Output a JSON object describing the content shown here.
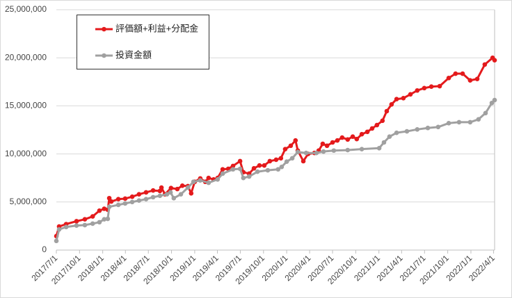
{
  "chart_data": {
    "type": "line",
    "ylim": [
      0,
      25000000
    ],
    "yticks": [
      0,
      {
        "value": 5000000,
        "label": "5,000,000"
      },
      {
        "value": 10000000,
        "label": "10,000,000"
      },
      {
        "value": 15000000,
        "label": "15,000,000"
      },
      {
        "value": 20000000,
        "label": "20,000,000"
      },
      {
        "value": 25000000,
        "label": "25,000,000"
      }
    ],
    "xlim": [
      "2017/7/1",
      "2022/4/5"
    ],
    "xticks": [
      "2017/7/1",
      "2017/10/1",
      "2018/1/1",
      "2018/4/1",
      "2018/7/1",
      "2018/10/1",
      "2019/1/1",
      "2019/4/1",
      "2019/7/1",
      "2019/10/1",
      "2020/1/1",
      "2020/4/1",
      "2020/7/1",
      "2020/10/1",
      "2021/1/1",
      "2021/4/1",
      "2021/7/1",
      "2021/10/1",
      "2022/1/1",
      "2022/4/1"
    ],
    "grid": true,
    "legend": "top-left",
    "series": [
      {
        "name": "評価額+利益+分配金",
        "color": "#e41a1c",
        "x": [
          "2017/7/1",
          "2017/7/12",
          "2017/8/9",
          "2017/9/19",
          "2017/10/22",
          "2017/11/22",
          "2017/12/19",
          "2018/1/7",
          "2018/1/21",
          "2018/1/27",
          "2018/2/4",
          "2018/3/4",
          "2018/3/31",
          "2018/4/28",
          "2018/5/25",
          "2018/6/22",
          "2018/7/20",
          "2018/8/16",
          "2018/8/22",
          "2018/9/5",
          "2018/9/29",
          "2018/10/24",
          "2018/11/13",
          "2018/12/5",
          "2018/12/18",
          "2019/1/1",
          "2019/1/23",
          "2019/2/12",
          "2019/2/25",
          "2019/3/17",
          "2019/4/2",
          "2019/4/22",
          "2019/5/14",
          "2019/6/2",
          "2019/6/30",
          "2019/7/13",
          "2019/8/5",
          "2019/8/24",
          "2019/9/15",
          "2019/10/4",
          "2019/10/26",
          "2019/11/20",
          "2019/12/9",
          "2019/12/26",
          "2020/1/17",
          "2020/2/5",
          "2020/2/14",
          "2020/3/7",
          "2020/3/26",
          "2020/4/20",
          "2020/5/7",
          "2020/5/23",
          "2020/6/9",
          "2020/7/1",
          "2020/7/20",
          "2020/8/8",
          "2020/8/30",
          "2020/9/19",
          "2020/10/5",
          "2020/10/25",
          "2020/11/16",
          "2020/12/5",
          "2020/12/24",
          "2021/1/15",
          "2021/2/1",
          "2021/2/20",
          "2021/3/12",
          "2021/4/8",
          "2021/5/6",
          "2021/6/2",
          "2021/6/30",
          "2021/7/28",
          "2021/8/30",
          "2021/10/5",
          "2021/11/1",
          "2021/11/29",
          "2021/12/29",
          "2022/1/26",
          "2022/2/25",
          "2022/3/28",
          "2022/4/5"
        ],
        "values": [
          1450000,
          2450000,
          2700000,
          3000000,
          3200000,
          3500000,
          4100000,
          4300000,
          4200000,
          5400000,
          5050000,
          5300000,
          5350000,
          5550000,
          5800000,
          6000000,
          6200000,
          6150000,
          6500000,
          5800000,
          6450000,
          6350000,
          6700000,
          6650000,
          5900000,
          7100000,
          7450000,
          7100000,
          7500000,
          7350000,
          7500000,
          8400000,
          8450000,
          8750000,
          9250000,
          8100000,
          7950000,
          8500000,
          8800000,
          8800000,
          9250000,
          9400000,
          9550000,
          10500000,
          10850000,
          11400000,
          10350000,
          9250000,
          10000000,
          10100000,
          10350000,
          11050000,
          10850000,
          11200000,
          11400000,
          11700000,
          11500000,
          11800000,
          11550000,
          12050000,
          12300000,
          12650000,
          13000000,
          13450000,
          14450000,
          15150000,
          15700000,
          15800000,
          16200000,
          16600000,
          16850000,
          17000000,
          17050000,
          17900000,
          18350000,
          18350000,
          17650000,
          17800000,
          19300000,
          20000000,
          19750000
        ]
      },
      {
        "name": "投資金額",
        "color": "#a0a0a0",
        "x": [
          "2017/7/1",
          "2017/7/12",
          "2017/8/9",
          "2017/9/19",
          "2017/10/22",
          "2017/11/22",
          "2017/12/19",
          "2018/1/7",
          "2018/1/21",
          "2018/1/27",
          "2018/3/4",
          "2018/3/31",
          "2018/4/28",
          "2018/5/25",
          "2018/6/22",
          "2018/7/20",
          "2018/8/16",
          "2018/9/13",
          "2018/9/27",
          "2018/10/10",
          "2018/11/7",
          "2018/12/5",
          "2018/12/27",
          "2019/1/23",
          "2019/2/25",
          "2019/4/2",
          "2019/4/22",
          "2019/6/2",
          "2019/6/30",
          "2019/7/13",
          "2019/8/5",
          "2019/9/7",
          "2019/10/18",
          "2019/11/28",
          "2019/12/12",
          "2020/1/1",
          "2020/1/23",
          "2020/2/14",
          "2020/3/18",
          "2020/4/28",
          "2020/5/26",
          "2020/7/6",
          "2020/8/30",
          "2020/10/25",
          "2021/1/2",
          "2021/1/21",
          "2021/2/12",
          "2021/3/12",
          "2021/4/22",
          "2021/6/2",
          "2021/7/14",
          "2021/8/24",
          "2021/10/5",
          "2021/11/15",
          "2021/12/29",
          "2022/1/31",
          "2022/2/28",
          "2022/3/25",
          "2022/4/5"
        ],
        "values": [
          950000,
          2150000,
          2400000,
          2550000,
          2600000,
          2750000,
          2900000,
          3200000,
          3250000,
          4500000,
          4700000,
          4850000,
          5000000,
          5150000,
          5300000,
          5500000,
          5650000,
          5800000,
          6000000,
          5400000,
          5800000,
          6500000,
          7100000,
          7250000,
          7000000,
          7350000,
          7950000,
          8400000,
          8450000,
          7500000,
          7650000,
          8150000,
          8300000,
          8400000,
          8650000,
          9200000,
          9550000,
          10200000,
          10100000,
          10100000,
          10250000,
          10350000,
          10400000,
          10500000,
          10600000,
          11200000,
          11800000,
          12200000,
          12350000,
          12550000,
          12700000,
          12800000,
          13200000,
          13300000,
          13300000,
          13600000,
          14250000,
          15300000,
          15600000
        ]
      }
    ]
  }
}
